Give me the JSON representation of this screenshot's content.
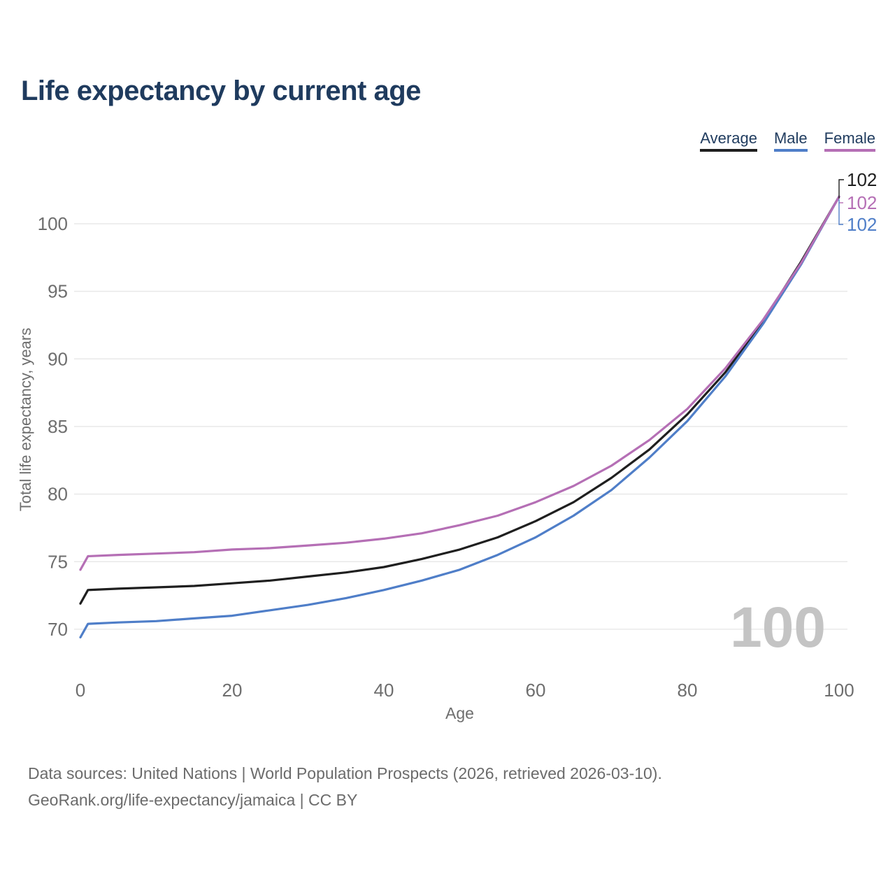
{
  "title": "Life expectancy by current age",
  "chart_data": {
    "type": "line",
    "title": "Life expectancy by current age",
    "xlabel": "Age",
    "ylabel": "Total life expectancy, years",
    "x": [
      0,
      1,
      5,
      10,
      15,
      20,
      25,
      30,
      35,
      40,
      45,
      50,
      55,
      60,
      65,
      70,
      75,
      80,
      85,
      90,
      95,
      100
    ],
    "series": [
      {
        "name": "Average",
        "color": "#1f1f1f",
        "end_label": "102",
        "values": [
          71.9,
          72.9,
          73.0,
          73.1,
          73.2,
          73.4,
          73.6,
          73.9,
          74.2,
          74.6,
          75.2,
          75.9,
          76.8,
          78.0,
          79.4,
          81.2,
          83.3,
          85.9,
          89.0,
          92.8,
          97.2,
          102
        ]
      },
      {
        "name": "Male",
        "color": "#4f7ec8",
        "end_label": "102",
        "values": [
          69.4,
          70.4,
          70.5,
          70.6,
          70.8,
          71.0,
          71.4,
          71.8,
          72.3,
          72.9,
          73.6,
          74.4,
          75.5,
          76.8,
          78.4,
          80.3,
          82.7,
          85.4,
          88.7,
          92.6,
          97.0,
          102
        ]
      },
      {
        "name": "Female",
        "color": "#b56fb5",
        "end_label": "102",
        "values": [
          74.4,
          75.4,
          75.5,
          75.6,
          75.7,
          75.9,
          76.0,
          76.2,
          76.4,
          76.7,
          77.1,
          77.7,
          78.4,
          79.4,
          80.6,
          82.1,
          84.0,
          86.3,
          89.3,
          92.9,
          97.1,
          102
        ]
      }
    ],
    "xticks": [
      0,
      20,
      40,
      60,
      80,
      100
    ],
    "yticks": [
      70,
      75,
      80,
      85,
      90,
      95,
      100
    ],
    "xlim": [
      0,
      100
    ],
    "ylim": [
      69,
      103.5
    ],
    "grid": "horizontal-only",
    "legend_position": "top-right",
    "legend_order": [
      "Average",
      "Male",
      "Female"
    ],
    "end_label_order": [
      "Average",
      "Female",
      "Male"
    ],
    "watermark": "100"
  },
  "footer": {
    "line1": "Data sources: United Nations | World Population Prospects (2026, retrieved 2026-03-10).",
    "line2": "GeoRank.org/life-expectancy/jamaica | CC BY"
  },
  "colors": {
    "title_text": "#1f3b5e",
    "axis_text": "#6e6e6e",
    "gridline": "#e9e9e9",
    "watermark": "#c4c4c4"
  }
}
